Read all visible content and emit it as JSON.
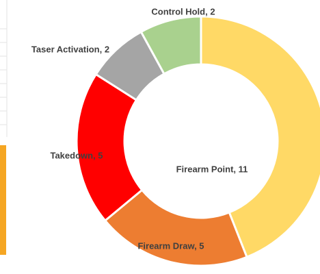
{
  "chart_data": {
    "type": "pie",
    "donut": true,
    "categories": [
      "Firearm Point",
      "Firearm Draw",
      "Takedown",
      "Taser Activation",
      "Control Hold"
    ],
    "values": [
      11,
      5,
      5,
      2,
      2
    ],
    "value_labels": [
      "Firearm Point, 11",
      "Firearm Draw, 5",
      "Takedown, 5",
      "Taser Activation, 2",
      "Control Hold, 2"
    ],
    "colors": [
      "#FFD966",
      "#ED7D31",
      "#FF0000",
      "#A5A5A5",
      "#A9D18E"
    ]
  }
}
